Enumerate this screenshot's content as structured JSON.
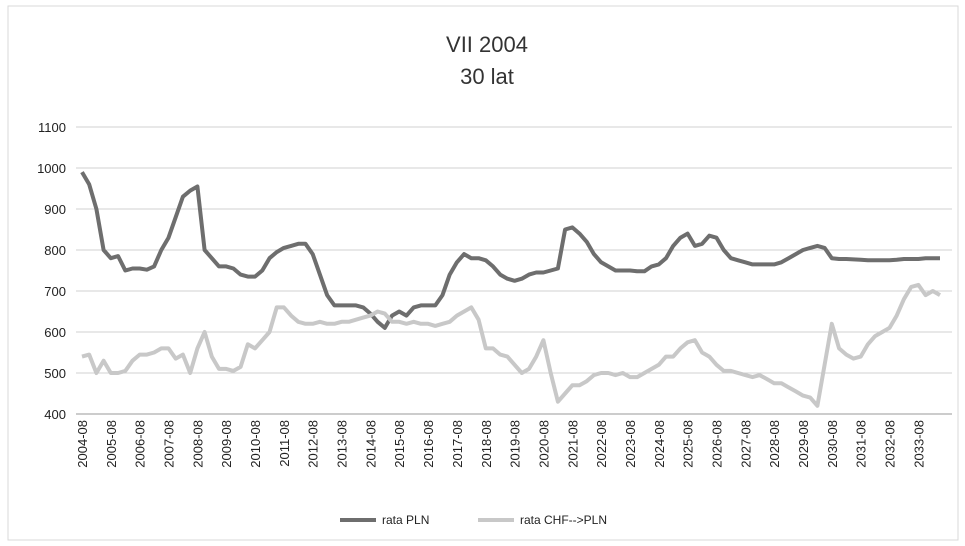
{
  "chart_data": {
    "type": "line",
    "title": "VII 2004",
    "subtitle": "30 lat",
    "categories": [
      "2004-08",
      null,
      null,
      null,
      "2005-08",
      null,
      null,
      null,
      "2006-08",
      null,
      null,
      null,
      "2007-08",
      null,
      null,
      null,
      "2008-08",
      null,
      null,
      null,
      "2009-08",
      null,
      null,
      null,
      "2010-08",
      null,
      null,
      null,
      "2011-08",
      null,
      null,
      null,
      "2012-08",
      null,
      null,
      null,
      "2013-08",
      null,
      null,
      null,
      "2014-08",
      null,
      null,
      null,
      "2015-08",
      null,
      null,
      null,
      "2016-08",
      null,
      null,
      null,
      "2017-08",
      null,
      null,
      null,
      "2018-08",
      null,
      null,
      null,
      "2019-08",
      null,
      null,
      null,
      "2020-08",
      null,
      null,
      null,
      "2021-08",
      null,
      null,
      null,
      "2022-08",
      null,
      null,
      null,
      "2023-08",
      null,
      null,
      null,
      "2024-08",
      null,
      null,
      null,
      "2025-08",
      null,
      null,
      null,
      "2026-08",
      null,
      null,
      null,
      "2027-08",
      null,
      null,
      null,
      "2028-08",
      null,
      null,
      null,
      "2029-08",
      null,
      null,
      null,
      "2030-08",
      null,
      null,
      null,
      "2031-08",
      null,
      null,
      null,
      "2032-08",
      null,
      null,
      null,
      "2033-08",
      null,
      null,
      null
    ],
    "series": [
      {
        "name": "rata PLN",
        "color": "#6e6e6e",
        "values": [
          990,
          960,
          900,
          800,
          780,
          785,
          750,
          755,
          755,
          752,
          760,
          800,
          830,
          880,
          930,
          945,
          955,
          800,
          780,
          760,
          760,
          755,
          740,
          735,
          735,
          750,
          780,
          795,
          805,
          810,
          815,
          815,
          790,
          740,
          690,
          665,
          665,
          665,
          665,
          660,
          645,
          625,
          610,
          640,
          650,
          640,
          660,
          665,
          665,
          665,
          690,
          740,
          770,
          790,
          780,
          780,
          775,
          760,
          740,
          730,
          725,
          730,
          740,
          745,
          745,
          750,
          755,
          850,
          855,
          840,
          820,
          790,
          770,
          760,
          750,
          750,
          750,
          748,
          748,
          760,
          765,
          780,
          810,
          830,
          840,
          810,
          815,
          835,
          830,
          800,
          780,
          775,
          770,
          765,
          765,
          765,
          765,
          770,
          780,
          790,
          800,
          805,
          810,
          805,
          780,
          778,
          778,
          777,
          776,
          775,
          775,
          775,
          775,
          776,
          778,
          778,
          778,
          780,
          780,
          780
        ]
      },
      {
        "name": "rata CHF-->PLN",
        "color": "#c8c8c8",
        "values": [
          540,
          545,
          500,
          530,
          500,
          500,
          505,
          530,
          545,
          545,
          550,
          560,
          560,
          535,
          545,
          500,
          560,
          600,
          540,
          510,
          510,
          505,
          515,
          570,
          560,
          580,
          600,
          660,
          660,
          640,
          625,
          620,
          620,
          625,
          620,
          620,
          625,
          625,
          630,
          635,
          640,
          650,
          645,
          625,
          625,
          620,
          625,
          620,
          620,
          615,
          620,
          625,
          640,
          650,
          660,
          630,
          560,
          560,
          545,
          540,
          520,
          500,
          510,
          540,
          580,
          500,
          430,
          450,
          470,
          470,
          480,
          495,
          500,
          500,
          495,
          500,
          490,
          490,
          500,
          510,
          520,
          540,
          540,
          560,
          575,
          580,
          550,
          540,
          520,
          505,
          505,
          500,
          495,
          490,
          495,
          485,
          475,
          475,
          465,
          455,
          445,
          440,
          420,
          520,
          620,
          560,
          545,
          535,
          540,
          570,
          590,
          600,
          610,
          640,
          680,
          710,
          715,
          690,
          700,
          690
        ]
      }
    ],
    "ylim": [
      400,
      1100
    ],
    "yticks": [
      400,
      500,
      600,
      700,
      800,
      900,
      1000,
      1100
    ],
    "grid": true,
    "legend": "bottom"
  }
}
